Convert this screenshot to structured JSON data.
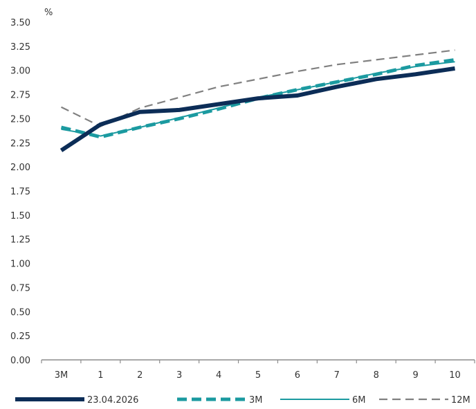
{
  "chart_data": {
    "type": "line",
    "unit": "%",
    "categories": [
      "3M",
      "1",
      "2",
      "3",
      "4",
      "5",
      "6",
      "7",
      "8",
      "9",
      "10"
    ],
    "yticks": [
      "0.00",
      "0.25",
      "0.50",
      "0.75",
      "1.00",
      "1.25",
      "1.50",
      "1.75",
      "2.00",
      "2.25",
      "2.50",
      "2.75",
      "3.00",
      "3.25",
      "3.50"
    ],
    "ylim": [
      0,
      3.5
    ],
    "grid": false,
    "legend_position": "bottom",
    "series": [
      {
        "name": "23.04.2026",
        "color": "#0c2d57",
        "style": "solid-thick",
        "values": [
          2.17,
          2.44,
          2.57,
          2.59,
          2.65,
          2.71,
          2.74,
          2.83,
          2.91,
          2.96,
          3.02
        ]
      },
      {
        "name": "3M",
        "color": "#1b9aa0",
        "style": "dashed-thick",
        "values": [
          2.41,
          2.31,
          2.41,
          2.5,
          2.6,
          2.71,
          2.8,
          2.88,
          2.96,
          3.05,
          3.11
        ]
      },
      {
        "name": "6M",
        "color": "#1b9aa0",
        "style": "solid-thin",
        "values": [
          2.39,
          2.32,
          2.41,
          2.51,
          2.61,
          2.72,
          2.8,
          2.88,
          2.97,
          3.04,
          3.09
        ]
      },
      {
        "name": "12M",
        "color": "#808080",
        "style": "dashed-thin",
        "values": [
          2.62,
          2.42,
          2.61,
          2.72,
          2.83,
          2.91,
          2.99,
          3.06,
          3.11,
          3.16,
          3.21
        ]
      }
    ]
  }
}
